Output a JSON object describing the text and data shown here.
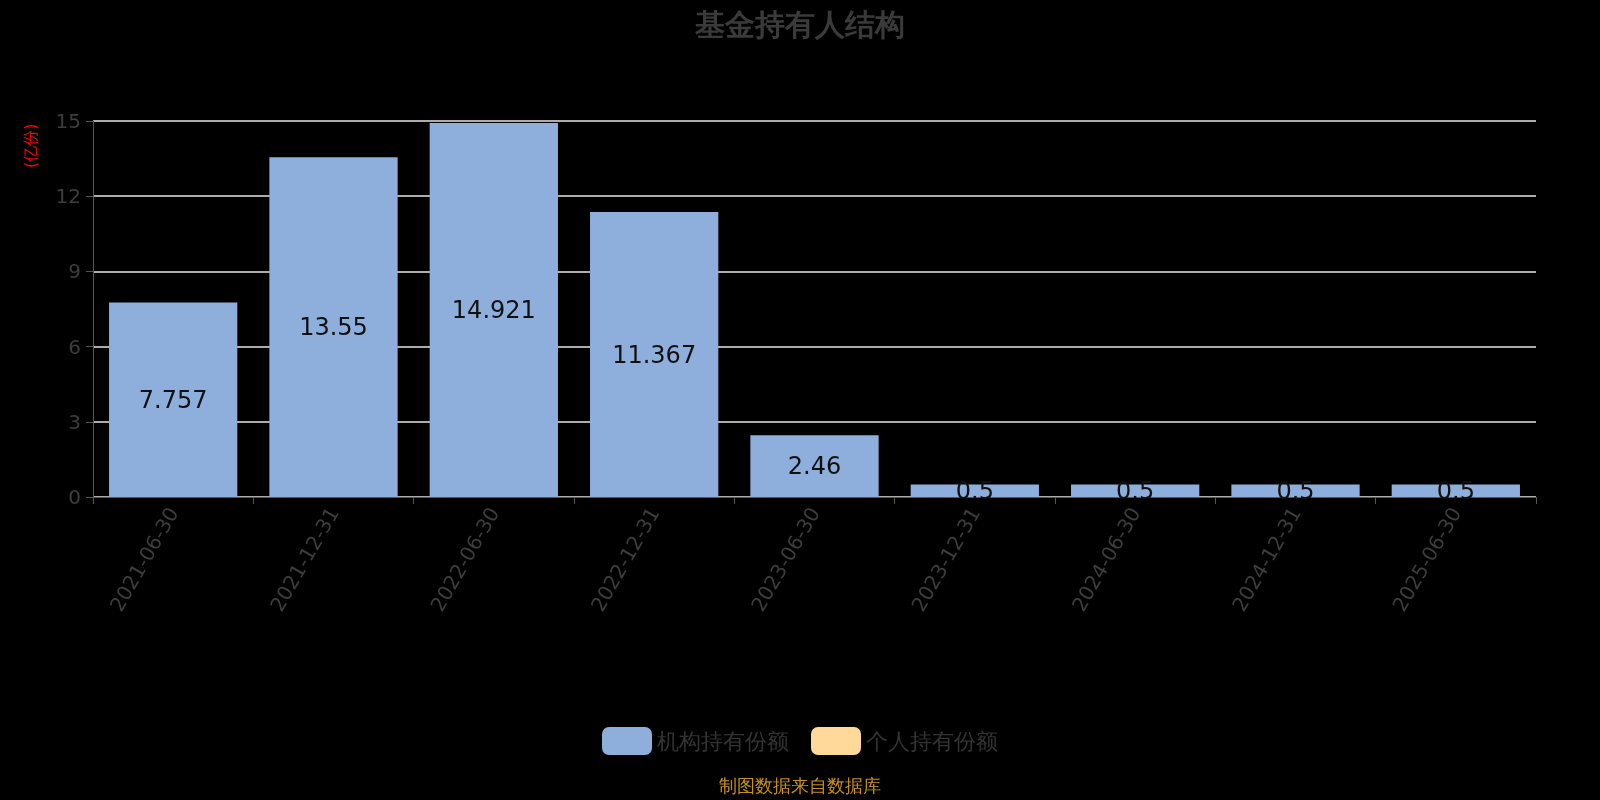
{
  "chart_data": {
    "type": "bar",
    "title": "基金持有人结构",
    "ylabel": "(亿份)",
    "categories": [
      "2021-06-30",
      "2021-12-31",
      "2022-06-30",
      "2022-12-31",
      "2023-06-30",
      "2023-12-31",
      "2024-06-30",
      "2024-12-31",
      "2025-06-30"
    ],
    "series": [
      {
        "name": "机构持有份额",
        "color": "#8eaedc",
        "values": [
          7.757,
          13.55,
          14.921,
          11.367,
          2.46,
          0.5,
          0.5,
          0.5,
          0.5
        ]
      },
      {
        "name": "个人持有份额",
        "color": "#ffd99a",
        "values": [
          null,
          null,
          null,
          null,
          null,
          null,
          null,
          null,
          null
        ]
      }
    ],
    "stacked": true,
    "ylim": [
      0,
      15
    ],
    "yticks": [
      0,
      3,
      6,
      9,
      12,
      15
    ],
    "grid": "y",
    "legend": "bottom",
    "data_labels": true,
    "annotations": [
      "制图数据来自数据库"
    ]
  }
}
